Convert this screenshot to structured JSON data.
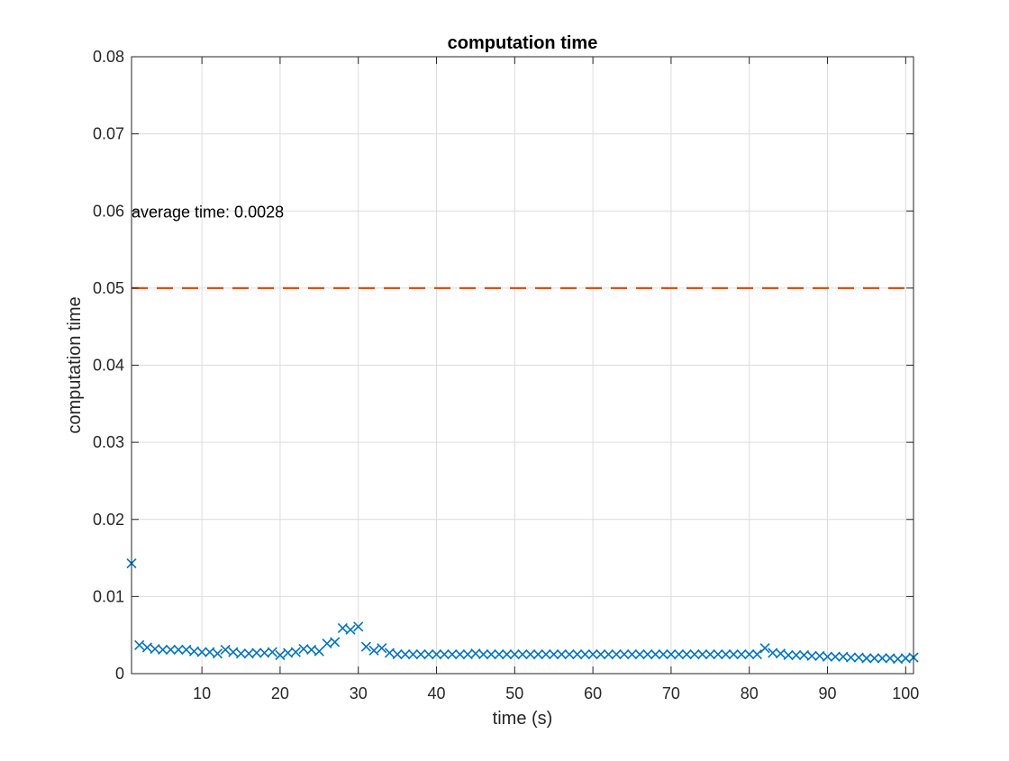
{
  "chart_data": {
    "type": "scatter",
    "title": "computation time",
    "xlabel": "time (s)",
    "ylabel": "computation time",
    "xlim": [
      1,
      101
    ],
    "ylim": [
      0,
      0.08
    ],
    "xticks": [
      10,
      20,
      30,
      40,
      50,
      60,
      70,
      80,
      90,
      100
    ],
    "yticks": [
      0,
      0.01,
      0.02,
      0.03,
      0.04,
      0.05,
      0.06,
      0.07,
      0.08
    ],
    "xtick_labels": [
      "10",
      "20",
      "30",
      "40",
      "50",
      "60",
      "70",
      "80",
      "90",
      "100"
    ],
    "ytick_labels": [
      "0",
      "0.01",
      "0.02",
      "0.03",
      "0.04",
      "0.05",
      "0.06",
      "0.07",
      "0.08"
    ],
    "grid": true,
    "box": true,
    "series": [
      {
        "marker": "x",
        "color": "#0072BD",
        "x": [
          1,
          2,
          3,
          4,
          5,
          6,
          7,
          8,
          9,
          10,
          11,
          12,
          13,
          14,
          15,
          16,
          17,
          18,
          19,
          20,
          21,
          22,
          23,
          24,
          25,
          26,
          27,
          28,
          29,
          30,
          31,
          32,
          33,
          34,
          35,
          36,
          37,
          38,
          39,
          40,
          41,
          42,
          43,
          44,
          45,
          46,
          47,
          48,
          49,
          50,
          51,
          52,
          53,
          54,
          55,
          56,
          57,
          58,
          59,
          60,
          61,
          62,
          63,
          64,
          65,
          66,
          67,
          68,
          69,
          70,
          71,
          72,
          73,
          74,
          75,
          76,
          77,
          78,
          79,
          80,
          81,
          82,
          83,
          84,
          85,
          86,
          87,
          88,
          89,
          90,
          91,
          92,
          93,
          94,
          95,
          96,
          97,
          98,
          99,
          100,
          101
        ],
        "y": [
          0.0143,
          0.0037,
          0.0034,
          0.0032,
          0.0031,
          0.0031,
          0.0031,
          0.0031,
          0.0029,
          0.0028,
          0.0028,
          0.0026,
          0.0031,
          0.0028,
          0.0026,
          0.0026,
          0.0027,
          0.0027,
          0.0028,
          0.0024,
          0.0027,
          0.0028,
          0.0032,
          0.0031,
          0.0029,
          0.0039,
          0.0041,
          0.0059,
          0.0057,
          0.0061,
          0.0035,
          0.003,
          0.0033,
          0.0027,
          0.0025,
          0.0025,
          0.0025,
          0.0025,
          0.0025,
          0.0025,
          0.0025,
          0.0025,
          0.0025,
          0.0025,
          0.0026,
          0.0025,
          0.0025,
          0.0025,
          0.0025,
          0.0025,
          0.0025,
          0.0025,
          0.0025,
          0.0025,
          0.0025,
          0.0025,
          0.0025,
          0.0025,
          0.0025,
          0.0025,
          0.0025,
          0.0025,
          0.0025,
          0.0025,
          0.0025,
          0.0025,
          0.0025,
          0.0025,
          0.0025,
          0.0025,
          0.0025,
          0.0025,
          0.0025,
          0.0025,
          0.0025,
          0.0025,
          0.0025,
          0.0025,
          0.0025,
          0.0025,
          0.0025,
          0.0033,
          0.0027,
          0.0026,
          0.0024,
          0.0024,
          0.0024,
          0.0023,
          0.0023,
          0.0022,
          0.0022,
          0.0022,
          0.0021,
          0.0021,
          0.002,
          0.002,
          0.002,
          0.002,
          0.0019,
          0.002,
          0.0021
        ]
      }
    ],
    "reference_line": {
      "y": 0.05,
      "style": "dashed",
      "color": "#D95319"
    },
    "annotation": {
      "text": "average time: 0.0028",
      "x": 1,
      "y": 0.06
    }
  }
}
